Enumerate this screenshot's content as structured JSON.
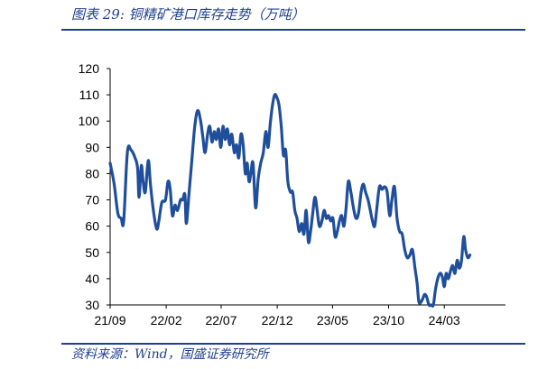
{
  "header": {
    "title": "图表 29:  铜精矿港口库存走势（万吨）"
  },
  "footer": {
    "source": "资料来源：Wind，国盛证券研究所"
  },
  "colors": {
    "line": "#1f4e9c",
    "text_accent": "#1f3f8f"
  },
  "chart_data": {
    "type": "line",
    "title": "",
    "xlabel": "",
    "ylabel": "",
    "ylim": [
      30,
      120
    ],
    "yticks": [
      30,
      40,
      50,
      60,
      70,
      80,
      90,
      100,
      110,
      120
    ],
    "xlim": [
      "2021-09-01",
      "2024-08-15"
    ],
    "xticks": [
      {
        "label": "21/09",
        "date": "2021-09-01"
      },
      {
        "label": "22/02",
        "date": "2022-02-01"
      },
      {
        "label": "22/07",
        "date": "2022-07-01"
      },
      {
        "label": "22/12",
        "date": "2022-12-01"
      },
      {
        "label": "23/05",
        "date": "2023-05-01"
      },
      {
        "label": "23/10",
        "date": "2023-10-01"
      },
      {
        "label": "24/03",
        "date": "2024-03-01"
      }
    ],
    "grid": false,
    "legend": "none",
    "series": [
      {
        "name": "",
        "points": [
          [
            "2021-09-01",
            84
          ],
          [
            "2021-09-12",
            76
          ],
          [
            "2021-09-22",
            65
          ],
          [
            "2021-10-01",
            63
          ],
          [
            "2021-10-08",
            62
          ],
          [
            "2021-10-18",
            88
          ],
          [
            "2021-10-28",
            89
          ],
          [
            "2021-11-08",
            86
          ],
          [
            "2021-11-15",
            82
          ],
          [
            "2021-11-19",
            71
          ],
          [
            "2021-11-25",
            83
          ],
          [
            "2021-11-30",
            77
          ],
          [
            "2021-12-06",
            73
          ],
          [
            "2021-12-14",
            85
          ],
          [
            "2021-12-20",
            76
          ],
          [
            "2021-12-28",
            66
          ],
          [
            "2022-01-06",
            59
          ],
          [
            "2022-01-12",
            62
          ],
          [
            "2022-01-20",
            69
          ],
          [
            "2022-01-30",
            70
          ],
          [
            "2022-02-06",
            77
          ],
          [
            "2022-02-12",
            74
          ],
          [
            "2022-02-18",
            64
          ],
          [
            "2022-02-25",
            68
          ],
          [
            "2022-03-04",
            66
          ],
          [
            "2022-03-12",
            70
          ],
          [
            "2022-03-18",
            70
          ],
          [
            "2022-03-24",
            72
          ],
          [
            "2022-03-28",
            61
          ],
          [
            "2022-04-04",
            72
          ],
          [
            "2022-04-12",
            85
          ],
          [
            "2022-04-20",
            98
          ],
          [
            "2022-04-28",
            104
          ],
          [
            "2022-05-06",
            100
          ],
          [
            "2022-05-12",
            94
          ],
          [
            "2022-05-18",
            88
          ],
          [
            "2022-05-25",
            95
          ],
          [
            "2022-05-31",
            98
          ],
          [
            "2022-06-06",
            92
          ],
          [
            "2022-06-12",
            96
          ],
          [
            "2022-06-18",
            93
          ],
          [
            "2022-06-24",
            97
          ],
          [
            "2022-06-30",
            90
          ],
          [
            "2022-07-06",
            98
          ],
          [
            "2022-07-12",
            93
          ],
          [
            "2022-07-18",
            97
          ],
          [
            "2022-07-24",
            91
          ],
          [
            "2022-07-30",
            95
          ],
          [
            "2022-08-06",
            88
          ],
          [
            "2022-08-12",
            91
          ],
          [
            "2022-08-18",
            86
          ],
          [
            "2022-08-24",
            95
          ],
          [
            "2022-08-30",
            91
          ],
          [
            "2022-09-05",
            80
          ],
          [
            "2022-09-10",
            84
          ],
          [
            "2022-09-15",
            77
          ],
          [
            "2022-09-20",
            80
          ],
          [
            "2022-09-26",
            84
          ],
          [
            "2022-10-03",
            67
          ],
          [
            "2022-10-10",
            78
          ],
          [
            "2022-10-17",
            84
          ],
          [
            "2022-10-24",
            88
          ],
          [
            "2022-10-31",
            96
          ],
          [
            "2022-11-06",
            90
          ],
          [
            "2022-11-12",
            99
          ],
          [
            "2022-11-18",
            106
          ],
          [
            "2022-11-24",
            110
          ],
          [
            "2022-11-30",
            109
          ],
          [
            "2022-12-06",
            106
          ],
          [
            "2022-12-12",
            98
          ],
          [
            "2022-12-18",
            87
          ],
          [
            "2022-12-24",
            89
          ],
          [
            "2022-12-30",
            77
          ],
          [
            "2023-01-06",
            73
          ],
          [
            "2023-01-12",
            73
          ],
          [
            "2023-01-18",
            66
          ],
          [
            "2023-01-24",
            63
          ],
          [
            "2023-01-30",
            58
          ],
          [
            "2023-02-06",
            61
          ],
          [
            "2023-02-12",
            57
          ],
          [
            "2023-02-18",
            66
          ],
          [
            "2023-02-24",
            54
          ],
          [
            "2023-03-02",
            58
          ],
          [
            "2023-03-08",
            65
          ],
          [
            "2023-03-14",
            71
          ],
          [
            "2023-03-20",
            66
          ],
          [
            "2023-03-26",
            60
          ],
          [
            "2023-04-02",
            62
          ],
          [
            "2023-04-08",
            66
          ],
          [
            "2023-04-14",
            63
          ],
          [
            "2023-04-20",
            64
          ],
          [
            "2023-04-26",
            62
          ],
          [
            "2023-05-02",
            63
          ],
          [
            "2023-05-08",
            56
          ],
          [
            "2023-05-14",
            58
          ],
          [
            "2023-05-20",
            62
          ],
          [
            "2023-05-26",
            64
          ],
          [
            "2023-06-01",
            60
          ],
          [
            "2023-06-07",
            67
          ],
          [
            "2023-06-13",
            77
          ],
          [
            "2023-06-20",
            73
          ],
          [
            "2023-06-27",
            67
          ],
          [
            "2023-07-04",
            63
          ],
          [
            "2023-07-11",
            65
          ],
          [
            "2023-07-18",
            73
          ],
          [
            "2023-07-24",
            76
          ],
          [
            "2023-07-30",
            73
          ],
          [
            "2023-08-06",
            70
          ],
          [
            "2023-08-12",
            66
          ],
          [
            "2023-08-18",
            62
          ],
          [
            "2023-08-24",
            60
          ],
          [
            "2023-08-30",
            67
          ],
          [
            "2023-09-06",
            75
          ],
          [
            "2023-09-13",
            74
          ],
          [
            "2023-09-20",
            75
          ],
          [
            "2023-09-27",
            73
          ],
          [
            "2023-10-04",
            64
          ],
          [
            "2023-10-10",
            70
          ],
          [
            "2023-10-17",
            75
          ],
          [
            "2023-10-24",
            63
          ],
          [
            "2023-10-31",
            58
          ],
          [
            "2023-11-07",
            57
          ],
          [
            "2023-11-14",
            51
          ],
          [
            "2023-11-21",
            48
          ],
          [
            "2023-11-28",
            49
          ],
          [
            "2023-12-05",
            51
          ],
          [
            "2023-12-12",
            44
          ],
          [
            "2023-12-18",
            38
          ],
          [
            "2023-12-23",
            31
          ],
          [
            "2024-01-01",
            32
          ],
          [
            "2024-01-07",
            34
          ],
          [
            "2024-01-13",
            33
          ],
          [
            "2024-01-19",
            30
          ],
          [
            "2024-01-25",
            30
          ],
          [
            "2024-01-31",
            30
          ],
          [
            "2024-02-06",
            36
          ],
          [
            "2024-02-12",
            40
          ],
          [
            "2024-02-18",
            42
          ],
          [
            "2024-02-24",
            41
          ],
          [
            "2024-03-01",
            37
          ],
          [
            "2024-03-06",
            42
          ],
          [
            "2024-03-12",
            40
          ],
          [
            "2024-03-18",
            43
          ],
          [
            "2024-03-24",
            45
          ],
          [
            "2024-03-30",
            42
          ],
          [
            "2024-04-05",
            47
          ],
          [
            "2024-04-11",
            44
          ],
          [
            "2024-04-17",
            47
          ],
          [
            "2024-04-23",
            56
          ],
          [
            "2024-04-28",
            51
          ],
          [
            "2024-05-04",
            48
          ],
          [
            "2024-05-10",
            49
          ]
        ]
      }
    ]
  }
}
